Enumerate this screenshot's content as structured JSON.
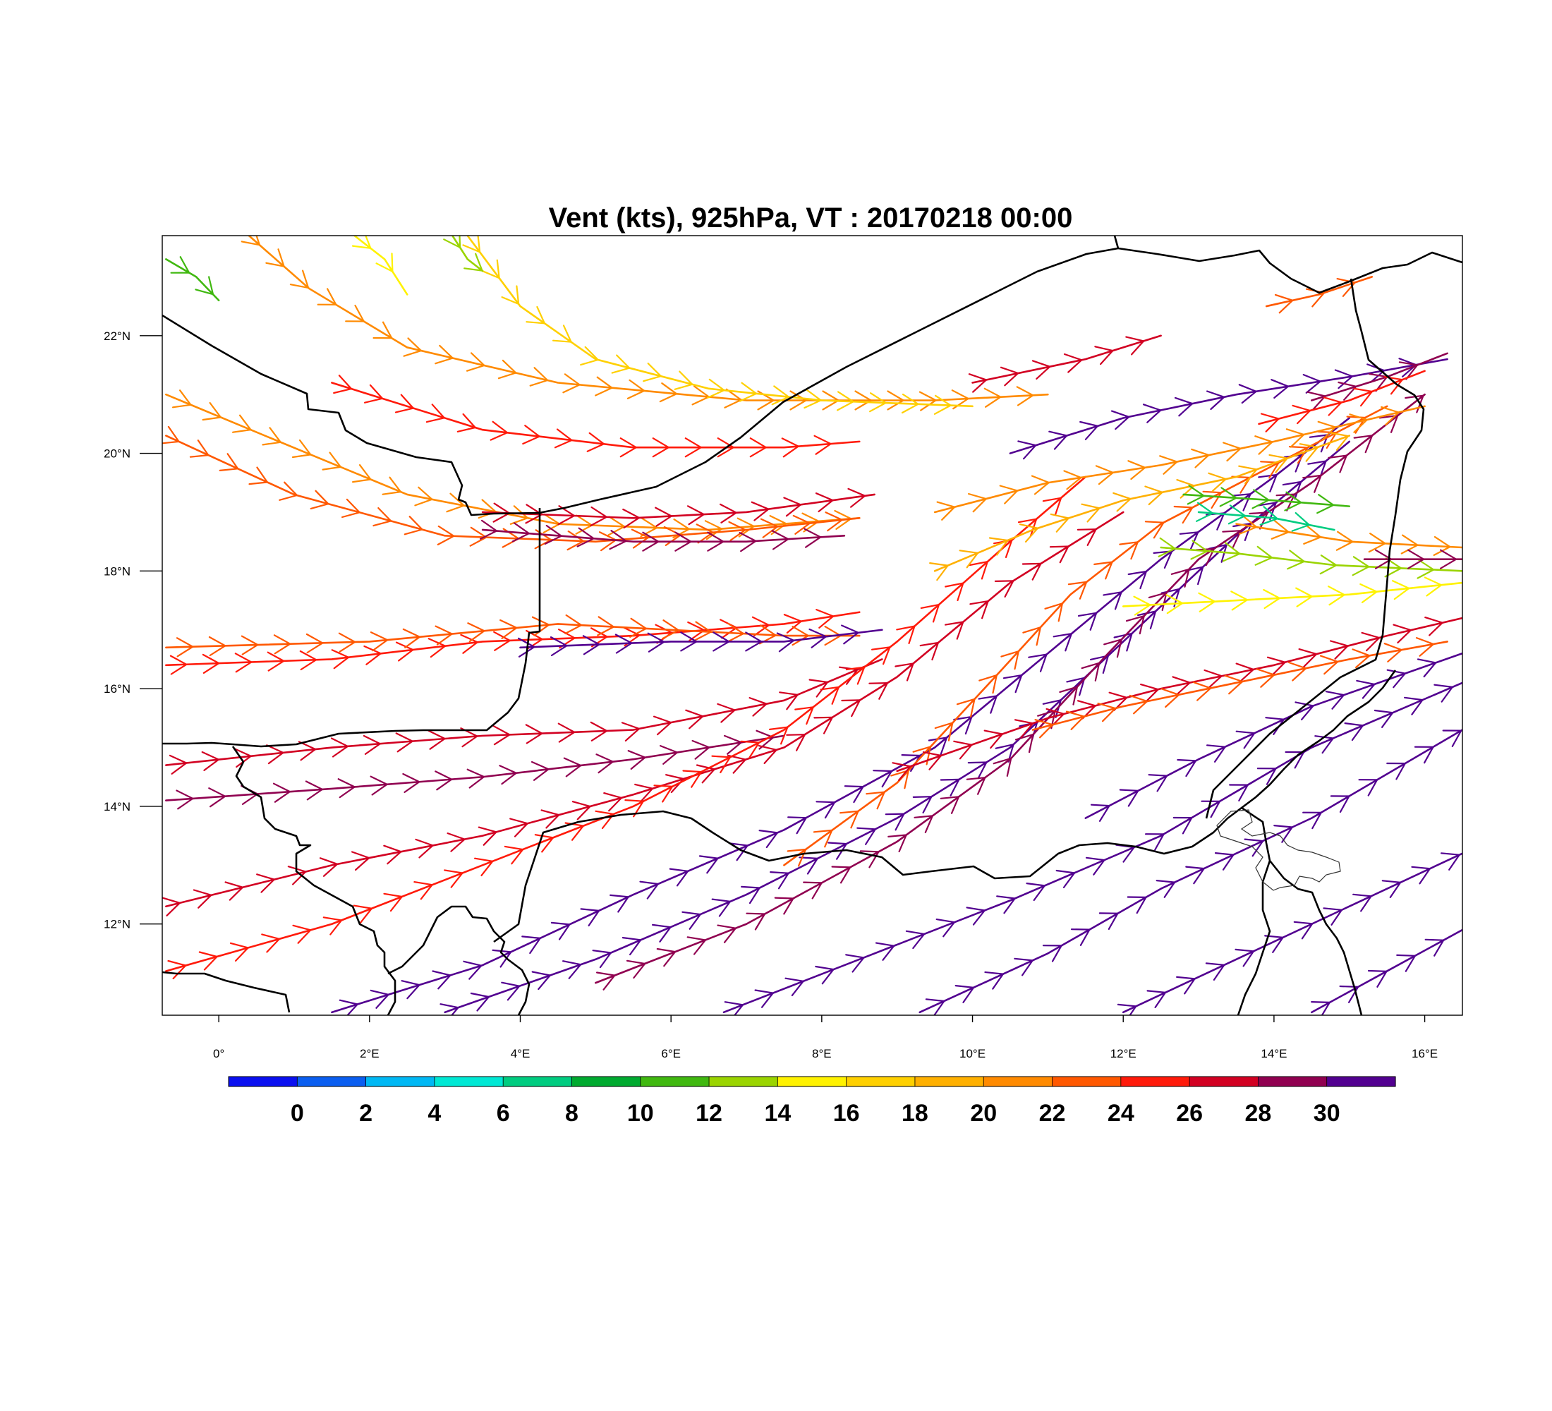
{
  "chart_data": {
    "type": "wind-streamline-map",
    "title": "Vent (kts), 925hPa, VT : 20170218  00:00",
    "x_ticks": [
      "0°",
      "2°E",
      "4°E",
      "6°E",
      "8°E",
      "10°E",
      "12°E",
      "14°E",
      "16°E"
    ],
    "x_tick_values": [
      0,
      2,
      4,
      6,
      8,
      10,
      12,
      14,
      16
    ],
    "y_ticks": [
      "22°N",
      "20°N",
      "18°N",
      "16°N",
      "14°N",
      "12°N"
    ],
    "y_tick_values": [
      22,
      20,
      18,
      16,
      14,
      12
    ],
    "lon_range": [
      -0.75,
      16.5
    ],
    "lat_range": [
      10.45,
      23.7
    ],
    "colorbar": {
      "labels": [
        "0",
        "2",
        "4",
        "6",
        "8",
        "10",
        "12",
        "14",
        "16",
        "18",
        "20",
        "22",
        "24",
        "26",
        "28",
        "30"
      ],
      "colors": [
        "#0a10f0",
        "#0a5ef0",
        "#00b8f4",
        "#00e8d4",
        "#00cc80",
        "#00aa30",
        "#40b810",
        "#9ad400",
        "#fff200",
        "#ffd000",
        "#ffb000",
        "#ff8a00",
        "#ff5800",
        "#ff1a0a",
        "#d20022",
        "#900050",
        "#520090"
      ]
    },
    "streamlines": [
      {
        "speed": 20,
        "points": [
          [
            0.4,
            23.7
          ],
          [
            1.2,
            22.8
          ],
          [
            2.5,
            21.8
          ],
          [
            4.5,
            21.2
          ],
          [
            7.0,
            20.9
          ],
          [
            9.5,
            20.9
          ],
          [
            11.0,
            21.0
          ]
        ]
      },
      {
        "speed": 16,
        "points": [
          [
            3.3,
            23.7
          ],
          [
            4.0,
            22.5
          ],
          [
            5.0,
            21.6
          ],
          [
            6.5,
            21.1
          ],
          [
            8.0,
            20.9
          ],
          [
            10.0,
            20.8
          ]
        ]
      },
      {
        "speed": 20,
        "points": [
          [
            -0.7,
            21.0
          ],
          [
            0.8,
            20.2
          ],
          [
            2.5,
            19.3
          ],
          [
            4.5,
            18.8
          ],
          [
            6.5,
            18.7
          ],
          [
            8.5,
            18.9
          ]
        ]
      },
      {
        "speed": 22,
        "points": [
          [
            -0.7,
            20.3
          ],
          [
            1.0,
            19.3
          ],
          [
            3.0,
            18.6
          ],
          [
            5.0,
            18.5
          ],
          [
            7.0,
            18.7
          ],
          [
            8.5,
            18.9
          ]
        ]
      },
      {
        "speed": 24,
        "points": [
          [
            1.5,
            21.2
          ],
          [
            3.5,
            20.4
          ],
          [
            5.5,
            20.1
          ],
          [
            7.5,
            20.1
          ],
          [
            8.5,
            20.2
          ]
        ]
      },
      {
        "speed": 26,
        "points": [
          [
            3.5,
            19.0
          ],
          [
            5.5,
            18.9
          ],
          [
            7.0,
            19.0
          ],
          [
            8.7,
            19.3
          ]
        ]
      },
      {
        "speed": 28,
        "points": [
          [
            3.5,
            18.7
          ],
          [
            5.5,
            18.5
          ],
          [
            7.0,
            18.5
          ],
          [
            8.3,
            18.6
          ]
        ]
      },
      {
        "speed": 24,
        "points": [
          [
            -0.7,
            16.4
          ],
          [
            1.5,
            16.5
          ],
          [
            3.5,
            16.8
          ],
          [
            5.5,
            16.9
          ],
          [
            7.5,
            17.1
          ],
          [
            8.5,
            17.3
          ]
        ]
      },
      {
        "speed": 22,
        "points": [
          [
            -0.7,
            16.7
          ],
          [
            2.0,
            16.8
          ],
          [
            4.5,
            17.1
          ],
          [
            6.0,
            17.0
          ],
          [
            7.5,
            16.9
          ],
          [
            8.5,
            16.9
          ]
        ]
      },
      {
        "speed": 30,
        "points": [
          [
            4.0,
            16.7
          ],
          [
            6.0,
            16.8
          ],
          [
            7.5,
            16.8
          ],
          [
            8.8,
            17.0
          ]
        ]
      },
      {
        "speed": 26,
        "points": [
          [
            -0.7,
            14.7
          ],
          [
            1.5,
            15.0
          ],
          [
            3.5,
            15.2
          ],
          [
            5.5,
            15.3
          ],
          [
            7.5,
            15.8
          ],
          [
            8.8,
            16.5
          ]
        ]
      },
      {
        "speed": 28,
        "points": [
          [
            -0.7,
            14.1
          ],
          [
            1.5,
            14.3
          ],
          [
            3.5,
            14.5
          ],
          [
            5.5,
            14.8
          ],
          [
            7.5,
            15.2
          ]
        ]
      },
      {
        "speed": 26,
        "points": [
          [
            -0.7,
            12.3
          ],
          [
            1.5,
            13.0
          ],
          [
            3.5,
            13.5
          ],
          [
            5.5,
            14.2
          ],
          [
            7.5,
            15.0
          ],
          [
            9.0,
            16.2
          ],
          [
            10.5,
            17.8
          ],
          [
            12.0,
            19.0
          ]
        ]
      },
      {
        "speed": 24,
        "points": [
          [
            -0.7,
            11.2
          ],
          [
            1.5,
            12.0
          ],
          [
            3.5,
            13.0
          ],
          [
            5.5,
            14.0
          ],
          [
            7.5,
            15.3
          ],
          [
            9.0,
            16.8
          ],
          [
            10.5,
            18.5
          ],
          [
            11.5,
            19.6
          ]
        ]
      },
      {
        "speed": 30,
        "points": [
          [
            1.5,
            10.5
          ],
          [
            3.5,
            11.3
          ],
          [
            5.5,
            12.5
          ],
          [
            7.5,
            13.6
          ],
          [
            9.5,
            15.0
          ],
          [
            11.0,
            16.6
          ],
          [
            12.5,
            18.2
          ],
          [
            14.0,
            19.6
          ],
          [
            15.0,
            20.6
          ]
        ]
      },
      {
        "speed": 30,
        "points": [
          [
            3.0,
            10.5
          ],
          [
            5.0,
            11.4
          ],
          [
            7.0,
            12.5
          ],
          [
            9.0,
            13.8
          ],
          [
            10.5,
            15.0
          ],
          [
            12.0,
            16.8
          ],
          [
            13.5,
            18.6
          ],
          [
            15.0,
            20.2
          ]
        ]
      },
      {
        "speed": 28,
        "points": [
          [
            5.0,
            11.0
          ],
          [
            7.0,
            12.0
          ],
          [
            9.0,
            13.4
          ],
          [
            10.5,
            14.8
          ],
          [
            11.8,
            16.6
          ],
          [
            13.0,
            18.2
          ],
          [
            14.5,
            19.5
          ],
          [
            16.0,
            21.0
          ]
        ]
      },
      {
        "speed": 22,
        "points": [
          [
            7.5,
            13.0
          ],
          [
            9.0,
            14.4
          ],
          [
            10.3,
            16.2
          ],
          [
            11.3,
            17.6
          ],
          [
            12.5,
            18.8
          ],
          [
            14.0,
            19.8
          ],
          [
            15.5,
            20.8
          ]
        ]
      },
      {
        "speed": 18,
        "points": [
          [
            9.5,
            18.0
          ],
          [
            10.8,
            18.7
          ],
          [
            12.0,
            19.2
          ],
          [
            13.5,
            19.6
          ],
          [
            15.0,
            20.3
          ]
        ]
      },
      {
        "speed": 20,
        "points": [
          [
            9.5,
            19.0
          ],
          [
            11.0,
            19.5
          ],
          [
            12.5,
            19.8
          ],
          [
            14.0,
            20.2
          ],
          [
            16.0,
            20.8
          ]
        ]
      },
      {
        "speed": 30,
        "points": [
          [
            10.5,
            20.0
          ],
          [
            12.0,
            20.6
          ],
          [
            13.5,
            21.0
          ],
          [
            15.0,
            21.3
          ],
          [
            16.3,
            21.6
          ]
        ]
      },
      {
        "speed": 26,
        "points": [
          [
            10.0,
            21.2
          ],
          [
            11.5,
            21.6
          ],
          [
            12.5,
            22.0
          ]
        ]
      },
      {
        "speed": 30,
        "points": [
          [
            6.7,
            10.5
          ],
          [
            8.5,
            11.4
          ],
          [
            10.5,
            12.4
          ],
          [
            12.5,
            13.5
          ],
          [
            14.5,
            15.0
          ],
          [
            16.5,
            16.1
          ]
        ]
      },
      {
        "speed": 30,
        "points": [
          [
            9.3,
            10.5
          ],
          [
            11.0,
            11.5
          ],
          [
            12.5,
            12.6
          ],
          [
            14.5,
            13.8
          ],
          [
            16.5,
            15.3
          ]
        ]
      },
      {
        "speed": 30,
        "points": [
          [
            12.0,
            10.5
          ],
          [
            13.5,
            11.4
          ],
          [
            15.0,
            12.3
          ],
          [
            16.5,
            13.2
          ]
        ]
      },
      {
        "speed": 30,
        "points": [
          [
            14.5,
            10.5
          ],
          [
            15.5,
            11.2
          ],
          [
            16.5,
            11.9
          ]
        ]
      },
      {
        "speed": 30,
        "points": [
          [
            11.5,
            13.8
          ],
          [
            13.0,
            14.8
          ],
          [
            14.5,
            15.7
          ],
          [
            16.5,
            16.6
          ]
        ]
      },
      {
        "speed": 26,
        "points": [
          [
            9.0,
            14.6
          ],
          [
            11.0,
            15.5
          ],
          [
            12.5,
            16.0
          ],
          [
            14.0,
            16.4
          ],
          [
            15.5,
            16.9
          ],
          [
            16.5,
            17.2
          ]
        ]
      },
      {
        "speed": 22,
        "points": [
          [
            10.8,
            15.3
          ],
          [
            12.0,
            15.7
          ],
          [
            13.5,
            16.1
          ],
          [
            15.0,
            16.5
          ],
          [
            16.3,
            16.8
          ]
        ]
      },
      {
        "speed": 14,
        "points": [
          [
            12.0,
            17.4
          ],
          [
            13.5,
            17.5
          ],
          [
            15.0,
            17.6
          ],
          [
            16.5,
            17.8
          ]
        ]
      },
      {
        "speed": 12,
        "points": [
          [
            12.5,
            18.4
          ],
          [
            13.5,
            18.3
          ],
          [
            14.8,
            18.1
          ],
          [
            16.5,
            18.0
          ]
        ]
      },
      {
        "speed": 20,
        "points": [
          [
            13.5,
            18.8
          ],
          [
            15.0,
            18.5
          ],
          [
            16.5,
            18.4
          ]
        ]
      },
      {
        "speed": 28,
        "points": [
          [
            15.2,
            18.2
          ],
          [
            16.5,
            18.2
          ]
        ]
      },
      {
        "speed": 6,
        "points": [
          [
            13.0,
            19.0
          ],
          [
            14.0,
            18.9
          ],
          [
            14.8,
            18.7
          ]
        ]
      },
      {
        "speed": 10,
        "points": [
          [
            12.8,
            19.3
          ],
          [
            14.0,
            19.2
          ],
          [
            15.0,
            19.1
          ]
        ]
      },
      {
        "speed": 22,
        "points": [
          [
            13.9,
            22.5
          ],
          [
            14.6,
            22.7
          ],
          [
            15.3,
            23.0
          ]
        ]
      },
      {
        "speed": 28,
        "points": [
          [
            14.5,
            20.9
          ],
          [
            15.5,
            21.3
          ],
          [
            16.3,
            21.7
          ]
        ]
      },
      {
        "speed": 24,
        "points": [
          [
            13.8,
            20.5
          ],
          [
            15.0,
            20.9
          ],
          [
            16.0,
            21.4
          ]
        ]
      },
      {
        "speed": 10,
        "points": [
          [
            -0.7,
            23.3
          ],
          [
            -0.3,
            23.0
          ],
          [
            0.0,
            22.6
          ]
        ]
      },
      {
        "speed": 12,
        "points": [
          [
            3.1,
            23.7
          ],
          [
            3.3,
            23.3
          ],
          [
            3.5,
            23.1
          ]
        ]
      },
      {
        "speed": 14,
        "points": [
          [
            1.8,
            23.7
          ],
          [
            2.2,
            23.3
          ],
          [
            2.5,
            22.7
          ]
        ]
      }
    ]
  }
}
